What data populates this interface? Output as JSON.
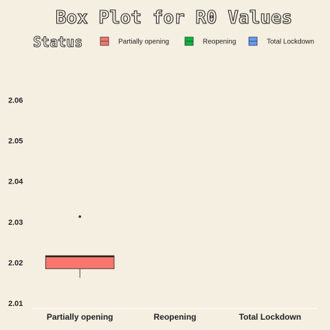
{
  "chart_data": {
    "type": "box",
    "title": "Box Plot for R0 Values",
    "xlabel": "",
    "ylabel": "",
    "legend": {
      "title": "Status",
      "placement": "top",
      "entries": [
        {
          "label": "Partially opening",
          "color": "#f8766d"
        },
        {
          "label": "Reopening",
          "color": "#00ba38"
        },
        {
          "label": "Total Lockdown",
          "color": "#619cff"
        }
      ]
    },
    "categories": [
      "Partially opening",
      "Reopening",
      "Total Lockdown"
    ],
    "ylim": [
      2.0085,
      2.0685
    ],
    "yticks": [
      {
        "value": 2.01,
        "label": "2.01"
      },
      {
        "value": 2.02,
        "label": "2.02"
      },
      {
        "value": 2.03,
        "label": "2.03"
      },
      {
        "value": 2.04,
        "label": "2.04"
      },
      {
        "value": 2.05,
        "label": "2.05"
      },
      {
        "value": 2.06,
        "label": "2.06"
      }
    ],
    "grid": false,
    "boxes": [
      {
        "category": "Partially opening",
        "color": "#f8766d",
        "whisker_low": 2.0163,
        "q1": 2.0185,
        "median": 2.0215,
        "q3": 2.0217,
        "whisker_high": 2.0217,
        "outliers": [
          2.0313
        ]
      }
    ]
  }
}
